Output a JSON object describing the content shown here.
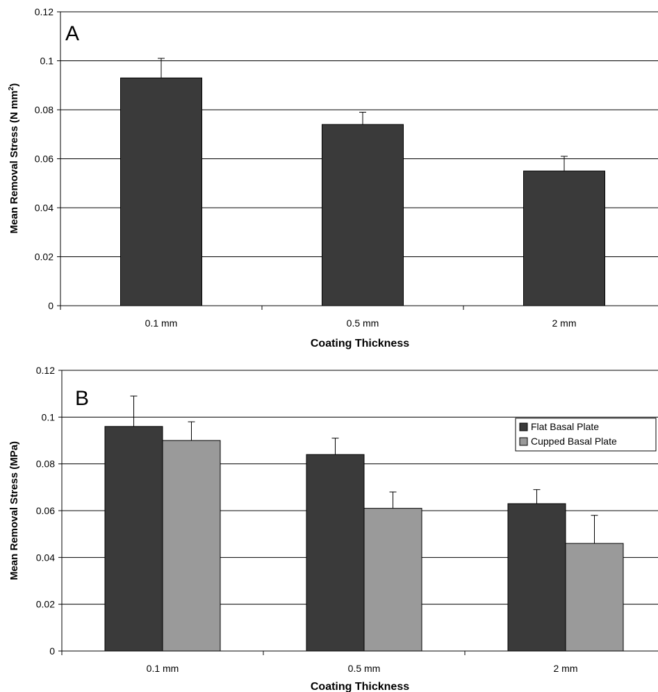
{
  "chart_data": [
    {
      "type": "bar",
      "panel_label": "A",
      "categories": [
        "0.1 mm",
        "0.5 mm",
        "2 mm"
      ],
      "series": [
        {
          "values": [
            0.093,
            0.074,
            0.055
          ],
          "errors": [
            0.008,
            0.005,
            0.006
          ],
          "color": "#3a3a3a"
        }
      ],
      "xlabel": "Coating Thickness",
      "ylabel": "Mean Removal Stress (N mm",
      "ylabel_sup": "2",
      "ylabel_close": ")",
      "ylim": [
        0,
        0.12
      ],
      "yticks": [
        "0",
        "0.02",
        "0.04",
        "0.06",
        "0.08",
        "0.1",
        "0.12"
      ],
      "grid": true
    },
    {
      "type": "bar",
      "panel_label": "B",
      "categories": [
        "0.1 mm",
        "0.5 mm",
        "2 mm"
      ],
      "series": [
        {
          "name": "Flat Basal Plate",
          "values": [
            0.096,
            0.084,
            0.063
          ],
          "errors": [
            0.013,
            0.007,
            0.006
          ],
          "color": "#3a3a3a"
        },
        {
          "name": "Cupped Basal Plate",
          "values": [
            0.09,
            0.061,
            0.046
          ],
          "errors": [
            0.008,
            0.007,
            0.012
          ],
          "color": "#9a9a9a"
        }
      ],
      "xlabel": "Coating Thickness",
      "ylabel": "Mean Removal Stress (MPa)",
      "ylim": [
        0,
        0.12
      ],
      "yticks": [
        "0",
        "0.02",
        "0.04",
        "0.06",
        "0.08",
        "0.1",
        "0.12"
      ],
      "grid": true,
      "legend_position": "top-right"
    }
  ]
}
